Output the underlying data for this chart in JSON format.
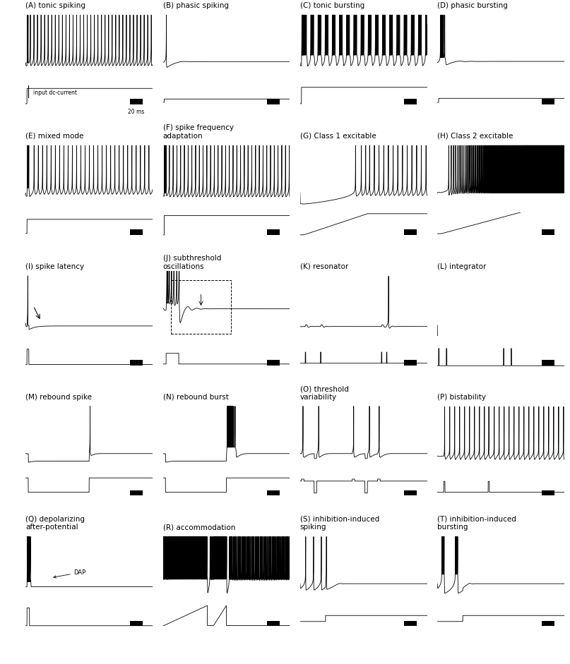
{
  "panels": [
    {
      "id": "A",
      "label": "(A) tonic spiking",
      "row": 0,
      "col": 0
    },
    {
      "id": "B",
      "label": "(B) phasic spiking",
      "row": 0,
      "col": 1
    },
    {
      "id": "C",
      "label": "(C) tonic bursting",
      "row": 0,
      "col": 2
    },
    {
      "id": "D",
      "label": "(D) phasic bursting",
      "row": 0,
      "col": 3
    },
    {
      "id": "E",
      "label": "(E) mixed mode",
      "row": 1,
      "col": 0
    },
    {
      "id": "F",
      "label": "(F) spike frequency\nadaptation",
      "row": 1,
      "col": 1
    },
    {
      "id": "G",
      "label": "(G) Class 1 excitable",
      "row": 1,
      "col": 2
    },
    {
      "id": "H",
      "label": "(H) Class 2 excitable",
      "row": 1,
      "col": 3
    },
    {
      "id": "I",
      "label": "(I) spike latency",
      "row": 2,
      "col": 0
    },
    {
      "id": "J",
      "label": "(J) subthreshold\noscillations",
      "row": 2,
      "col": 1
    },
    {
      "id": "K",
      "label": "(K) resonator",
      "row": 2,
      "col": 2
    },
    {
      "id": "L",
      "label": "(L) integrator",
      "row": 2,
      "col": 3
    },
    {
      "id": "M",
      "label": "(M) rebound spike",
      "row": 3,
      "col": 0
    },
    {
      "id": "N",
      "label": "(N) rebound burst",
      "row": 3,
      "col": 1
    },
    {
      "id": "O",
      "label": "(O) threshold\nvariability",
      "row": 3,
      "col": 2
    },
    {
      "id": "P",
      "label": "(P) bistability",
      "row": 3,
      "col": 3
    },
    {
      "id": "Q",
      "label": "(Q) depolarizing\nafter-potential",
      "row": 4,
      "col": 0
    },
    {
      "id": "R",
      "label": "(R) accommodation",
      "row": 4,
      "col": 1
    },
    {
      "id": "S",
      "label": "(S) inhibition-induced\nspiking",
      "row": 4,
      "col": 2
    },
    {
      "id": "T",
      "label": "(T) inhibition-induced\nbursting",
      "row": 4,
      "col": 3
    }
  ],
  "label_fontsize": 7.5
}
